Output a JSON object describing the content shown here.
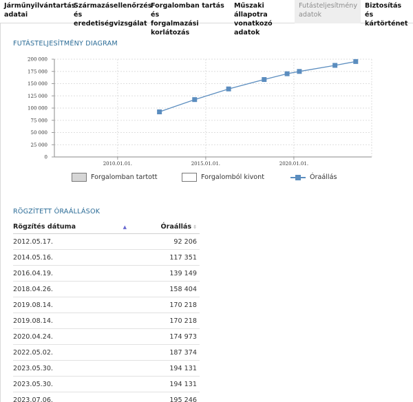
{
  "tabs": [
    {
      "line1": "Járműnyilvántartás",
      "line2": "adatai",
      "active": false
    },
    {
      "line1": "Származásellenőrzés",
      "line2": "és eredetiségvizsgálat",
      "active": false
    },
    {
      "line1": "Forgalomban tartás és",
      "line2": "forgalmazási korlátozás",
      "active": false
    },
    {
      "line1": "Műszaki állapotra",
      "line2": "vonatkozó adatok",
      "active": false
    },
    {
      "line1": "Futásteljesítmény",
      "line2": "adatok",
      "active": true
    },
    {
      "line1": "Biztosítás és",
      "line2": "kártörténet",
      "active": false
    }
  ],
  "chart_section": {
    "title": "FUTÁSTELJESÍTMÉNY DIAGRAM"
  },
  "chart_data": {
    "type": "line",
    "title": "",
    "xlabel": "",
    "ylabel": "",
    "x_ticks": [
      "2010.01.01.",
      "2015.01.01.",
      "2020.01.01."
    ],
    "y_ticks": [
      "200 000",
      "175 000",
      "150 000",
      "125 000",
      "100 000",
      "75 000",
      "50 000",
      "25 000",
      "0"
    ],
    "ylim": [
      0,
      200000
    ],
    "xlim": [
      "2006.06.01.",
      "2024.06.01."
    ],
    "grid": true,
    "legend": {
      "placement": "bottom",
      "items": [
        {
          "label": "Forgalomban tartott",
          "color": "#d6d6d6"
        },
        {
          "label": "Forgalomból kivont",
          "color": "#ffffff"
        },
        {
          "label": "Óraállás",
          "color": "#5b8dbf"
        }
      ]
    },
    "series": [
      {
        "name": "Óraállás",
        "color": "#5b8dbf",
        "x": [
          "2012.05.17.",
          "2014.05.16.",
          "2016.04.19.",
          "2018.04.26.",
          "2019.08.14.",
          "2020.04.24.",
          "2022.05.02.",
          "2023.07.06."
        ],
        "y": [
          92206,
          117351,
          139149,
          158404,
          170218,
          174973,
          187374,
          195246
        ]
      }
    ]
  },
  "table_section": {
    "title": "RÖGZÍTETT ÓRAÁLLÁSOK"
  },
  "table": {
    "headers": [
      "Rögzítés dátuma",
      "Óraállás"
    ],
    "rows": [
      [
        "2012.05.17.",
        "92 206"
      ],
      [
        "2014.05.16.",
        "117 351"
      ],
      [
        "2016.04.19.",
        "139 149"
      ],
      [
        "2018.04.26.",
        "158 404"
      ],
      [
        "2019.08.14.",
        "170 218"
      ],
      [
        "2019.08.14.",
        "170 218"
      ],
      [
        "2020.04.24.",
        "174 973"
      ],
      [
        "2022.05.02.",
        "187 374"
      ],
      [
        "2023.05.30.",
        "194 131"
      ],
      [
        "2023.05.30.",
        "194 131"
      ],
      [
        "2023.07.06.",
        "195 246"
      ]
    ]
  }
}
